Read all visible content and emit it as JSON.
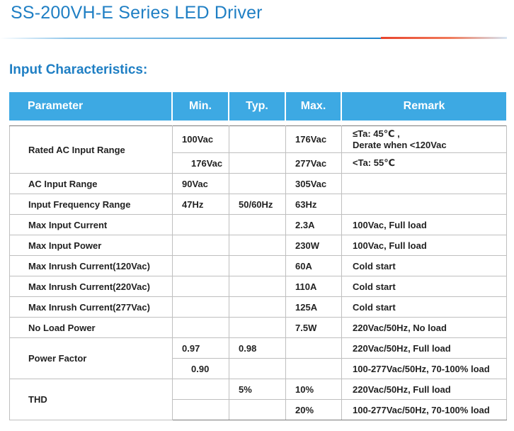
{
  "document": {
    "title": "SS-200VH-E Series LED Driver",
    "section_title": "Input Characteristics:"
  },
  "table": {
    "headers": {
      "parameter": "Parameter",
      "min": "Min.",
      "typ": "Typ.",
      "max": "Max.",
      "remark": "Remark"
    },
    "rows": [
      {
        "parameter": "Rated AC Input Range",
        "min": "100Vac",
        "typ": "",
        "max": "176Vac",
        "remark_line1": "≤Ta: 45℃ ,",
        "remark_line2": "Derate when <120Vac"
      },
      {
        "min": "176Vac",
        "typ": "",
        "max": "277Vac",
        "remark": "<Ta: 55℃"
      },
      {
        "parameter": "AC Input Range",
        "min": "90Vac",
        "typ": "",
        "max": "305Vac",
        "remark": ""
      },
      {
        "parameter": "Input Frequency Range",
        "min": "47Hz",
        "typ": "50/60Hz",
        "max": "63Hz",
        "remark": ""
      },
      {
        "parameter": "Max Input Current",
        "min": "",
        "typ": "",
        "max": "2.3A",
        "remark": "100Vac, Full load"
      },
      {
        "parameter": "Max Input Power",
        "min": "",
        "typ": "",
        "max": "230W",
        "remark": "100Vac, Full load"
      },
      {
        "parameter": "Max Inrush Current(120Vac)",
        "min": "",
        "typ": "",
        "max": "60A",
        "remark": "Cold start"
      },
      {
        "parameter": "Max Inrush Current(220Vac)",
        "min": "",
        "typ": "",
        "max": "110A",
        "remark": "Cold start"
      },
      {
        "parameter": "Max Inrush Current(277Vac)",
        "min": "",
        "typ": "",
        "max": "125A",
        "remark": "Cold start"
      },
      {
        "parameter": "No Load Power",
        "min": "",
        "typ": "",
        "max": "7.5W",
        "remark": "220Vac/50Hz, No load"
      },
      {
        "parameter": "Power Factor",
        "min": "0.97",
        "typ": "0.98",
        "max": "",
        "remark": "220Vac/50Hz, Full load"
      },
      {
        "min": "0.90",
        "typ": "",
        "max": "",
        "remark": "100-277Vac/50Hz, 70-100% load"
      },
      {
        "parameter": "THD",
        "min": "",
        "typ": "5%",
        "max": "10%",
        "remark": "220Vac/50Hz, Full load"
      },
      {
        "min": "",
        "typ": "",
        "max": "20%",
        "remark": "100-277Vac/50Hz, 70-100% load"
      }
    ]
  }
}
